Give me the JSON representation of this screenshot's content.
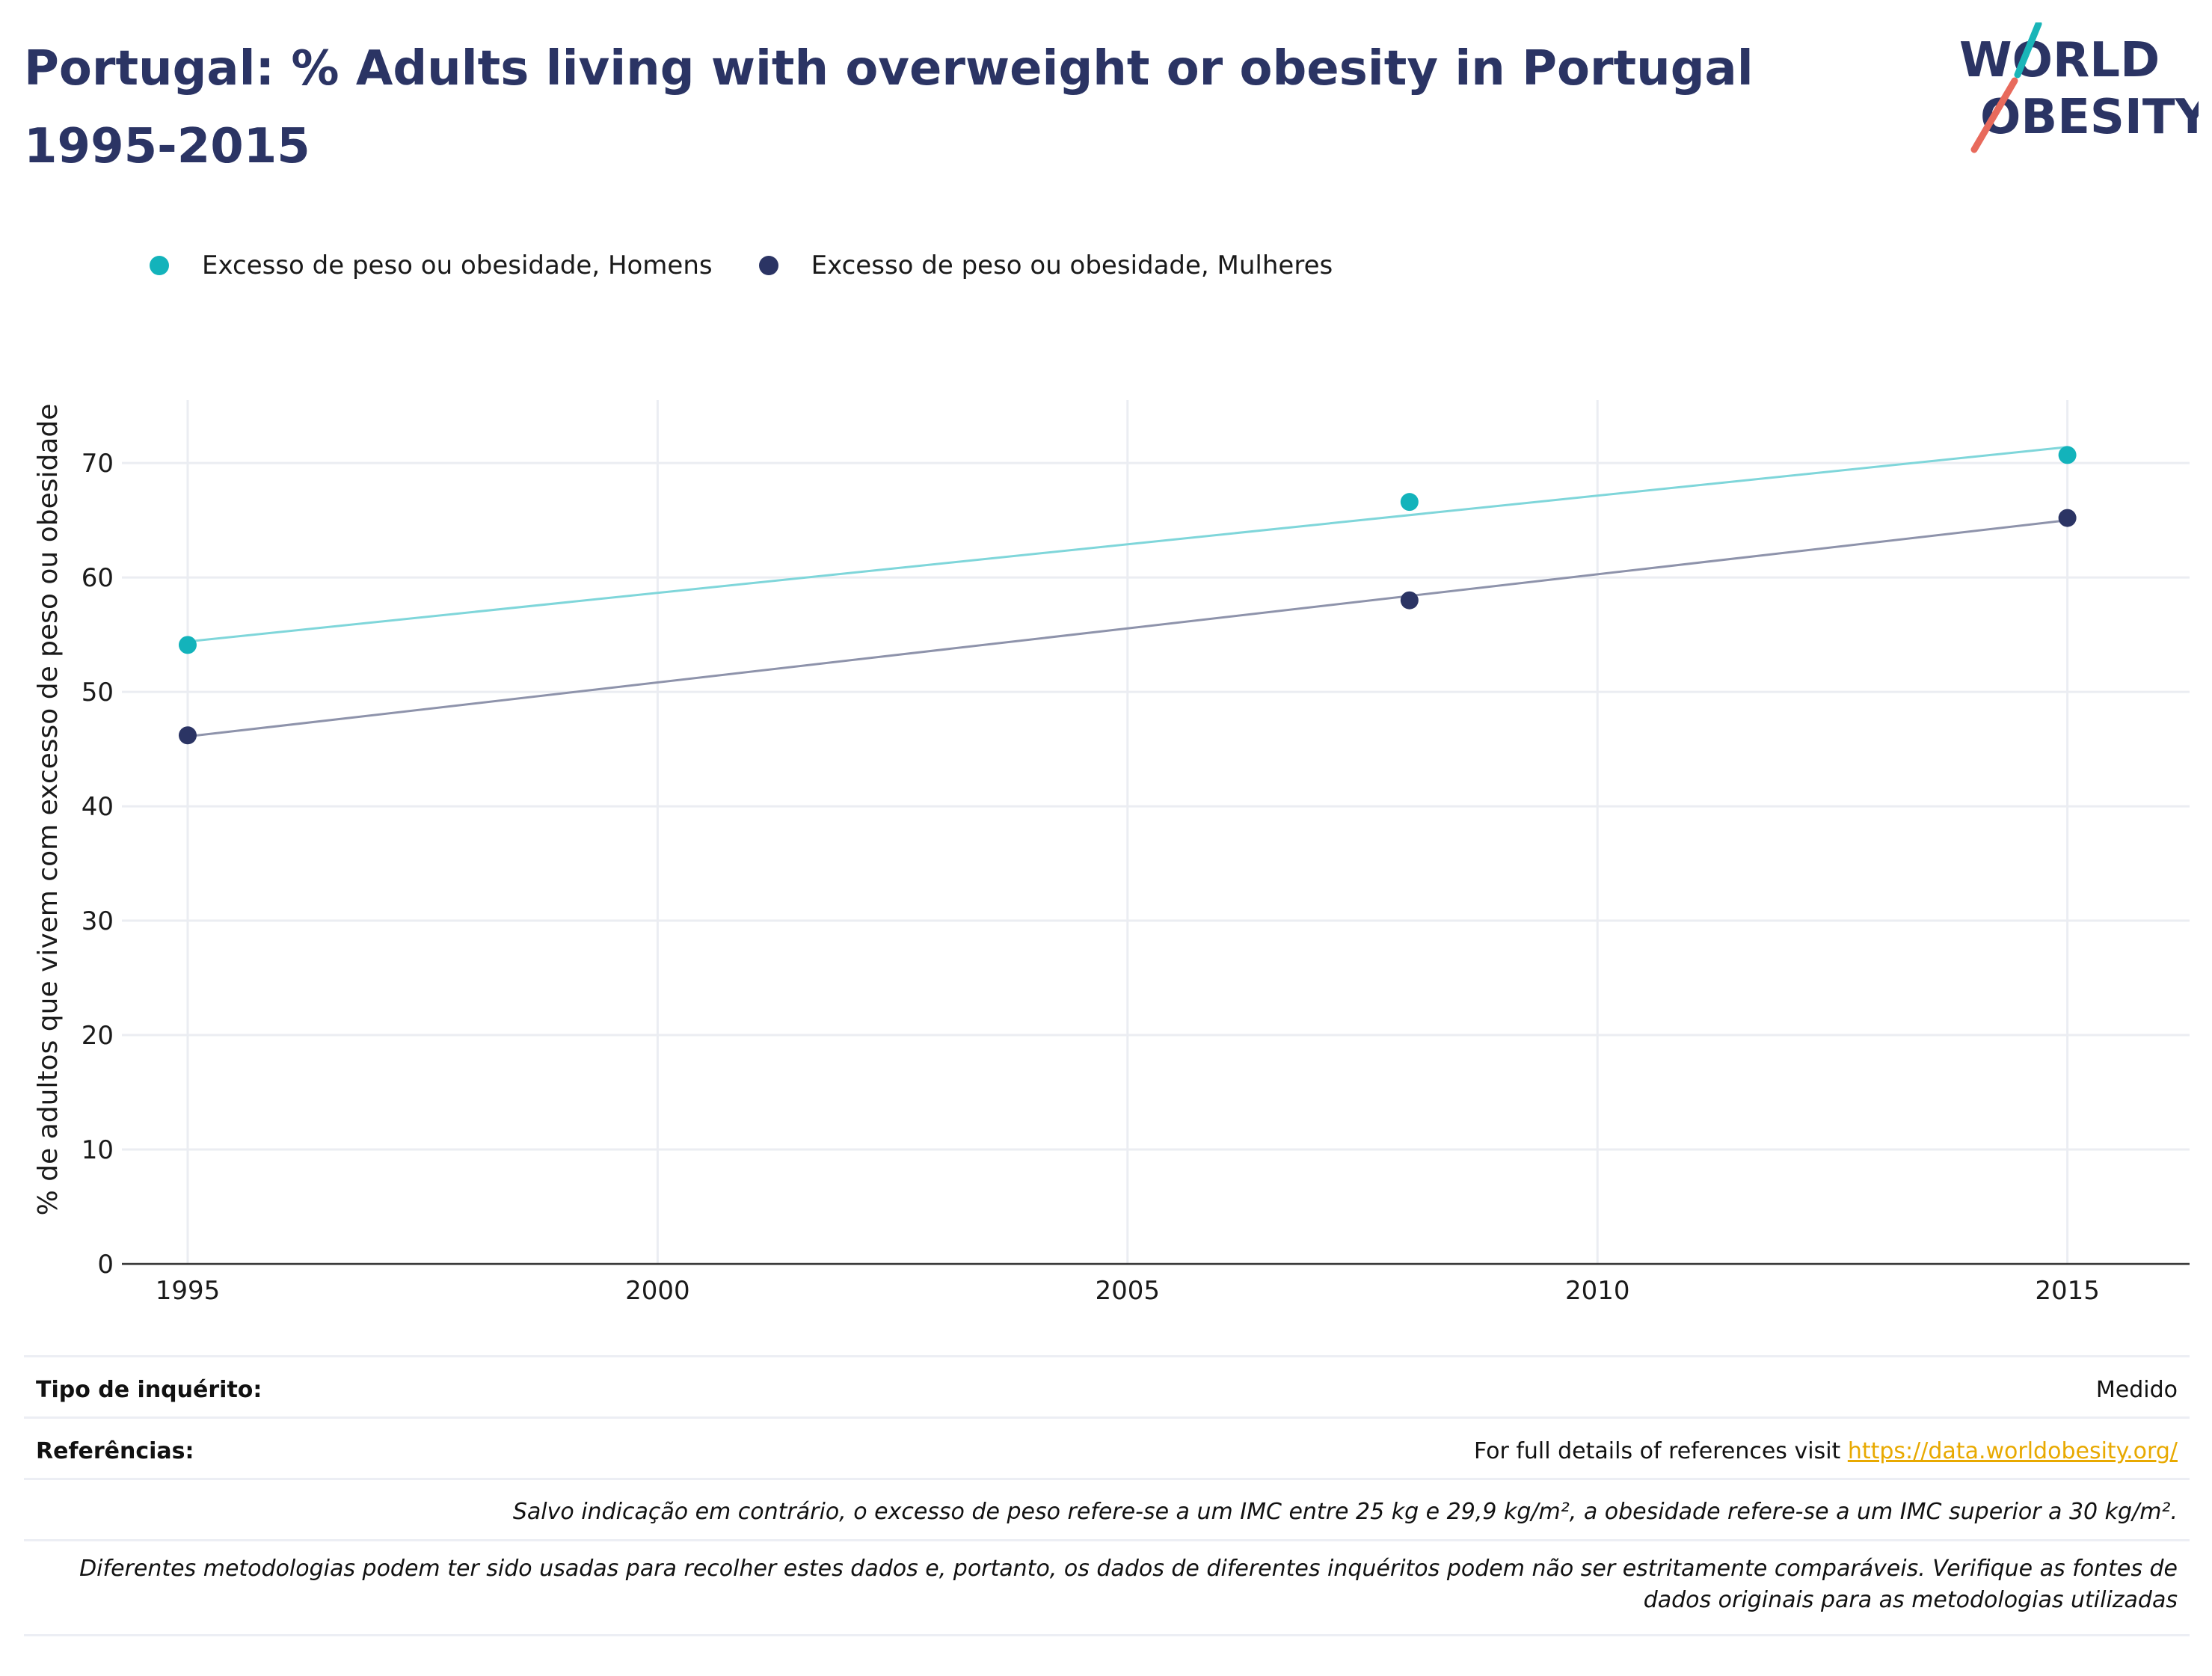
{
  "header": {
    "title": "Portugal: % Adults living with overweight or obesity in Portugal 1995-2015",
    "logo": {
      "line1": "WORLD",
      "line2": "OBESITY",
      "colors": {
        "text": "#2b3464",
        "slash_teal": "#1ab5b8",
        "slash_red": "#e86a5c"
      }
    }
  },
  "legend": [
    {
      "label": "Excesso de peso ou obesidade, Homens",
      "color": "#13b3bb"
    },
    {
      "label": "Excesso de peso ou obesidade, Mulheres",
      "color": "#2b3464"
    }
  ],
  "chart_data": {
    "type": "scatter",
    "ylabel": "% de adultos que vivem com excesso de peso ou obesidade",
    "xlabel": "",
    "xlim": [
      1994.3,
      2016.3
    ],
    "ylim": [
      0,
      75.5
    ],
    "xticks": [
      1995,
      2000,
      2005,
      2010,
      2015
    ],
    "yticks": [
      0,
      10,
      20,
      30,
      40,
      50,
      60,
      70
    ],
    "grid": true,
    "legend_position": "top-left",
    "series": [
      {
        "name": "Excesso de peso ou obesidade, Homens",
        "color": "#13b3bb",
        "x": [
          1995,
          2008,
          2015
        ],
        "y": [
          54.1,
          66.6,
          70.7
        ],
        "trend": {
          "from": [
            1995,
            54.4
          ],
          "to": [
            2015,
            71.4
          ],
          "color": "#7fd6da"
        }
      },
      {
        "name": "Excesso de peso ou obesidade, Mulheres",
        "color": "#2b3464",
        "x": [
          1995,
          2008,
          2015
        ],
        "y": [
          46.2,
          58.0,
          65.2
        ],
        "trend": {
          "from": [
            1995,
            46.1
          ],
          "to": [
            2015,
            65.0
          ],
          "color": "#8e93ab"
        }
      }
    ]
  },
  "footer": {
    "survey_type_label": "Tipo de inquérito:",
    "survey_type_value": "Medido",
    "references_label": "Referências:",
    "references_text": "For full details of references visit ",
    "references_link": "https://data.worldobesity.org/",
    "note_1": "Salvo indicação em contrário, o excesso de peso refere-se a um IMC entre 25 kg e 29,9 kg/m², a obesidade refere-se a um IMC superior a 30 kg/m².",
    "note_2": "Diferentes metodologias podem ter sido usadas para recolher estes dados e, portanto, os dados de diferentes inquéritos podem não ser estritamente comparáveis. Verifique as fontes de dados originais para as metodologias utilizadas"
  }
}
